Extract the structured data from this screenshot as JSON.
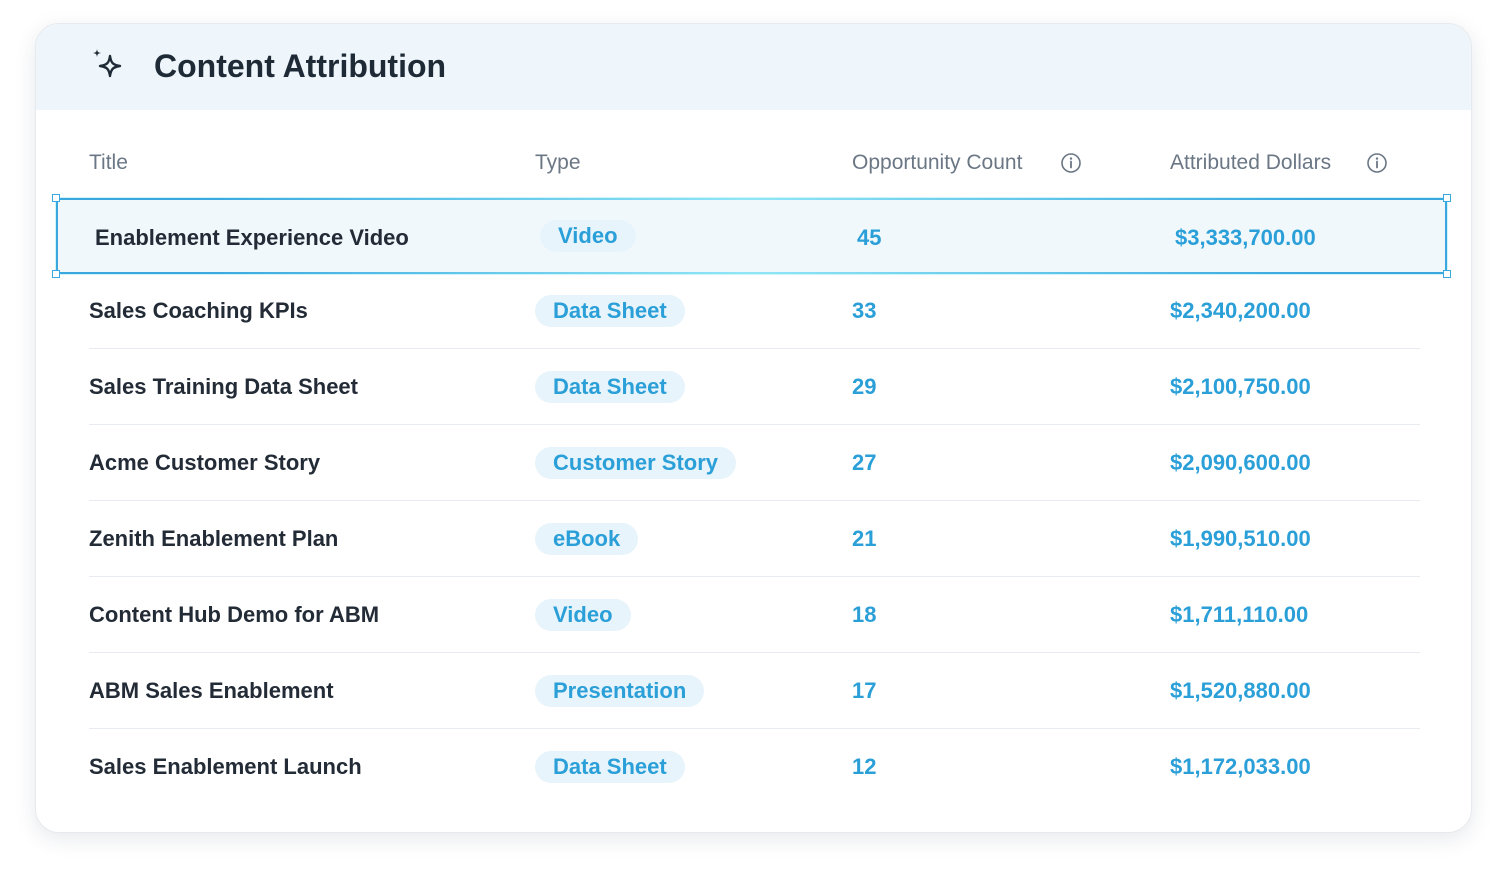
{
  "card": {
    "title": "Content Attribution",
    "icon": "sparkle-icon"
  },
  "table": {
    "columns": [
      "Title",
      "Type",
      "Opportunity Count",
      "Attributed Dollars"
    ],
    "info_icon": "info-icon",
    "selected_index": 0,
    "rows": [
      {
        "title": "Enablement Experience Video",
        "type": "Video",
        "count": "45",
        "dollars": "$3,333,700.00"
      },
      {
        "title": "Sales Coaching KPIs",
        "type": "Data Sheet",
        "count": "33",
        "dollars": "$2,340,200.00"
      },
      {
        "title": "Sales Training Data Sheet",
        "type": "Data Sheet",
        "count": "29",
        "dollars": "$2,100,750.00"
      },
      {
        "title": "Acme Customer Story",
        "type": "Customer Story",
        "count": "27",
        "dollars": "$2,090,600.00"
      },
      {
        "title": "Zenith Enablement Plan",
        "type": "eBook",
        "count": "21",
        "dollars": "$1,990,510.00"
      },
      {
        "title": "Content Hub Demo for ABM",
        "type": "Video",
        "count": "18",
        "dollars": "$1,711,110.00"
      },
      {
        "title": "ABM Sales Enablement",
        "type": "Presentation",
        "count": "17",
        "dollars": "$1,520,880.00"
      },
      {
        "title": "Sales Enablement Launch",
        "type": "Data Sheet",
        "count": "12",
        "dollars": "$1,172,033.00"
      }
    ]
  },
  "colors": {
    "accent": "#2a9fd8",
    "badge_bg": "#e8f4fb",
    "header_bg": "#eef6fb",
    "selection_border": "#3aa7de",
    "text_primary": "#222b36",
    "text_muted": "#6b7785"
  }
}
